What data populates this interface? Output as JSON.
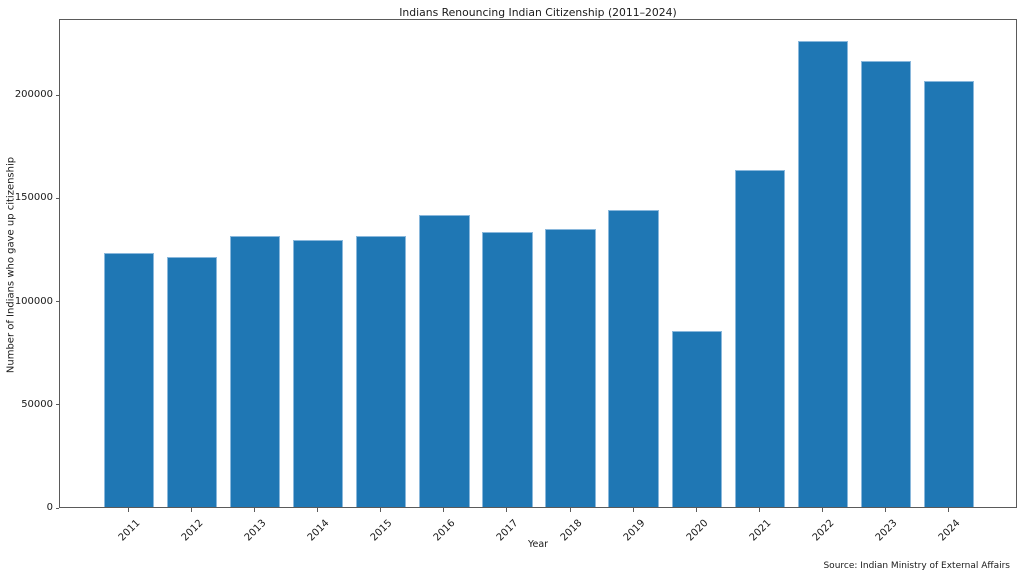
{
  "chart_data": {
    "type": "bar",
    "title": "Indians Renouncing Indian Citizenship (2011–2024)",
    "xlabel": "Year",
    "ylabel": "Number of Indians who gave up citizenship",
    "source_note": "Source: Indian Ministry of External Affairs",
    "categories": [
      "2011",
      "2012",
      "2013",
      "2014",
      "2015",
      "2016",
      "2017",
      "2018",
      "2019",
      "2020",
      "2021",
      "2022",
      "2023",
      "2024"
    ],
    "values": [
      122819,
      120923,
      131405,
      129328,
      131489,
      141603,
      133049,
      134561,
      144017,
      85256,
      163370,
      225620,
      216219,
      206378
    ],
    "bar_color": "#1f77b4",
    "bar_edge_color": "#8ab8dc",
    "ylim": [
      0,
      236901
    ],
    "yticks": [
      0,
      50000,
      100000,
      150000,
      200000
    ],
    "grid": false,
    "legend_position": null
  }
}
